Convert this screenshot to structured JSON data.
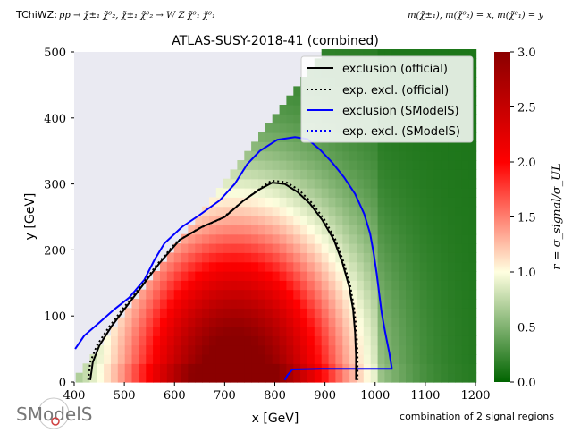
{
  "header": {
    "topo_label": "TChiWZ:",
    "process": "pp → χ̃±₁ χ̃⁰₂, χ̃±₁ χ̃⁰₂ → W Z χ̃⁰₁ χ̃⁰₁",
    "mass_assignment": "m(χ̃±₁), m(χ̃⁰₂) = x, m(χ̃⁰₁) = y"
  },
  "logo_text": "SModelS",
  "footer_note": "combination of 2 signal regions",
  "colorbar": {
    "label": "r = σ_signal/σ_UL",
    "ticks": [
      "0.0",
      "0.5",
      "1.0",
      "1.5",
      "2.0",
      "2.5",
      "3.0"
    ],
    "range": [
      0,
      3
    ],
    "colors": [
      "#006400",
      "#ffffe0",
      "#ff0000",
      "#8b0000"
    ]
  },
  "chart_data": {
    "type": "heatmap",
    "title": "ATLAS-SUSY-2018-41 (combined)",
    "xlabel": "x [GeV]",
    "ylabel": "y [GeV]",
    "xlim": [
      400,
      1200
    ],
    "ylim": [
      0,
      500
    ],
    "xticks": [
      "400",
      "500",
      "600",
      "700",
      "800",
      "900",
      "1000",
      "1100",
      "1200"
    ],
    "yticks": [
      "0",
      "100",
      "200",
      "300",
      "400",
      "500"
    ],
    "grid": false,
    "legend_position": "top-right",
    "legend": [
      {
        "label": "exclusion (official)",
        "color": "#000000",
        "style": "solid"
      },
      {
        "label": "exp. excl. (official)",
        "color": "#000000",
        "style": "dotted"
      },
      {
        "label": "exclusion (SModelS)",
        "color": "#0000ff",
        "style": "solid"
      },
      {
        "label": "exp. excl. (SModelS)",
        "color": "#0000ff",
        "style": "dotted"
      }
    ],
    "exclusion_official": [
      [
        432,
        3
      ],
      [
        437,
        30
      ],
      [
        450,
        55
      ],
      [
        475,
        85
      ],
      [
        505,
        115
      ],
      [
        535,
        145
      ],
      [
        570,
        180
      ],
      [
        610,
        215
      ],
      [
        655,
        235
      ],
      [
        700,
        250
      ],
      [
        738,
        275
      ],
      [
        770,
        292
      ],
      [
        795,
        302
      ],
      [
        820,
        300
      ],
      [
        845,
        288
      ],
      [
        870,
        270
      ],
      [
        895,
        245
      ],
      [
        918,
        215
      ],
      [
        935,
        180
      ],
      [
        948,
        145
      ],
      [
        956,
        110
      ],
      [
        960,
        75
      ],
      [
        962,
        40
      ],
      [
        962,
        3
      ]
    ],
    "exp_excl_official": [
      [
        428,
        3
      ],
      [
        432,
        30
      ],
      [
        445,
        55
      ],
      [
        468,
        82
      ],
      [
        498,
        112
      ],
      [
        530,
        142
      ],
      [
        565,
        178
      ],
      [
        605,
        213
      ],
      [
        650,
        233
      ],
      [
        695,
        248
      ],
      [
        733,
        272
      ],
      [
        765,
        290
      ],
      [
        793,
        305
      ],
      [
        822,
        303
      ],
      [
        848,
        291
      ],
      [
        873,
        272
      ],
      [
        898,
        247
      ],
      [
        920,
        217
      ],
      [
        937,
        182
      ],
      [
        950,
        147
      ],
      [
        958,
        112
      ],
      [
        963,
        77
      ],
      [
        965,
        42
      ],
      [
        965,
        3
      ]
    ],
    "exclusion_smodels": [
      [
        402,
        50
      ],
      [
        420,
        70
      ],
      [
        450,
        90
      ],
      [
        480,
        110
      ],
      [
        510,
        128
      ],
      [
        540,
        155
      ],
      [
        560,
        185
      ],
      [
        580,
        210
      ],
      [
        615,
        235
      ],
      [
        650,
        253
      ],
      [
        690,
        275
      ],
      [
        720,
        300
      ],
      [
        745,
        330
      ],
      [
        770,
        350
      ],
      [
        805,
        367
      ],
      [
        840,
        371
      ],
      [
        865,
        368
      ],
      [
        890,
        352
      ],
      [
        915,
        332
      ],
      [
        938,
        310
      ],
      [
        960,
        285
      ],
      [
        978,
        255
      ],
      [
        990,
        225
      ],
      [
        997,
        195
      ],
      [
        1003,
        165
      ],
      [
        1008,
        135
      ],
      [
        1013,
        105
      ],
      [
        1020,
        75
      ],
      [
        1028,
        45
      ],
      [
        1033,
        22
      ],
      [
        1033,
        20
      ],
      [
        1000,
        20
      ],
      [
        950,
        20
      ],
      [
        890,
        20
      ],
      [
        835,
        19
      ],
      [
        825,
        10
      ],
      [
        820,
        3
      ]
    ]
  }
}
